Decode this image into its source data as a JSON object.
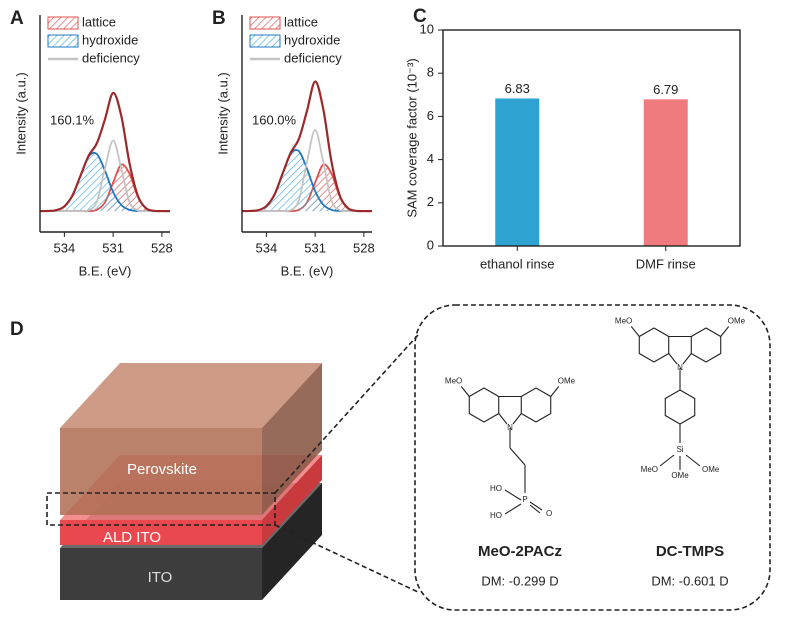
{
  "chart_data": [
    {
      "type": "line",
      "label": "A",
      "annotation": "160.1%",
      "x_label": "B.E. (eV)",
      "y_label": "Intensity (a.u.)",
      "x": [
        535.5,
        535,
        534.5,
        534,
        533.5,
        533,
        532.5,
        532,
        531.5,
        531,
        530.5,
        530,
        529.5,
        529,
        528.5,
        528,
        527.5
      ],
      "xlim": [
        535.5,
        527.5
      ],
      "xticks": [
        534,
        531,
        528
      ],
      "ylim": [
        -16,
        150
      ],
      "legend": "upper left",
      "series": [
        {
          "name": "lattice",
          "color": "#e0504c",
          "hatch": true,
          "values": [
            0,
            0,
            0,
            0,
            0,
            0,
            0,
            1,
            6.7,
            21.8,
            35.5,
            28.8,
            11.7,
            2.4,
            0.2,
            0,
            0
          ]
        },
        {
          "name": "hydroxide",
          "color": "#1f78c0",
          "hatch": true,
          "values": [
            0,
            0.1,
            0.7,
            3.6,
            12,
            27.3,
            41.9,
            43.6,
            30.8,
            14.6,
            4.7,
            1,
            0.1,
            0,
            0,
            0,
            0
          ]
        },
        {
          "name": "deficiency",
          "color": "#c4c4c4",
          "values": [
            0,
            0,
            0,
            0,
            0,
            0,
            0.6,
            7.3,
            32.8,
            54,
            32.8,
            7.3,
            0.6,
            0,
            0,
            0,
            0
          ]
        },
        {
          "color": "#9b2a2a",
          "values": [
            0,
            0.1,
            0.7,
            3.6,
            12,
            27.3,
            42.5,
            51.9,
            70.3,
            90.4,
            73,
            37.1,
            12.4,
            2.4,
            0.2,
            0,
            0
          ]
        }
      ]
    },
    {
      "type": "line",
      "label": "B",
      "annotation": "160.0%",
      "x_label": "B.E. (eV)",
      "y_label": "Intensity (a.u.)",
      "x": [
        535.5,
        535,
        534.5,
        534,
        533.5,
        533,
        532.5,
        532,
        531.5,
        531,
        530.5,
        530,
        529.5,
        529,
        528.5,
        528,
        527.5
      ],
      "xlim": [
        535.5,
        527.5
      ],
      "xticks": [
        534,
        531,
        528
      ],
      "ylim": [
        -16,
        150
      ],
      "legend": "upper left",
      "series": [
        {
          "name": "lattice",
          "color": "#e0504c",
          "hatch": true,
          "values": [
            0,
            0,
            0,
            0,
            0,
            0,
            0,
            1,
            6.7,
            21.8,
            35.5,
            28.8,
            11.7,
            2.4,
            0.2,
            0,
            0
          ]
        },
        {
          "name": "hydroxide",
          "color": "#1f78c0",
          "hatch": true,
          "values": [
            0,
            0.1,
            0.7,
            3.8,
            12.6,
            28.7,
            44,
            45.8,
            32.3,
            15.3,
            4.9,
            1,
            0.1,
            0,
            0,
            0,
            0
          ]
        },
        {
          "name": "deficiency",
          "color": "#c4c4c4",
          "values": [
            0,
            0,
            0,
            0,
            0,
            0,
            0.7,
            8.4,
            37.7,
            62,
            37.7,
            8.4,
            0.7,
            0,
            0,
            0,
            0
          ]
        },
        {
          "color": "#9b2a2a",
          "values": [
            0,
            0.1,
            0.7,
            3.8,
            12.6,
            28.7,
            44.7,
            55.2,
            76.7,
            99.1,
            78.1,
            38.2,
            12.5,
            2.4,
            0.2,
            0,
            0
          ]
        }
      ]
    },
    {
      "type": "bar",
      "label": "C",
      "y_label": "SAM coverage factor (10⁻³)",
      "categories": [
        "ethanol rinse",
        "DMF rinse"
      ],
      "values": [
        6.83,
        6.79
      ],
      "colors": [
        "#2ea3d1",
        "#f07b7f"
      ],
      "ylim": [
        0,
        10
      ],
      "yticks": [
        0,
        2,
        4,
        6,
        8,
        10
      ]
    }
  ],
  "diagram": {
    "label": "D",
    "layers": [
      "Perovskite",
      "ALD ITO",
      "ITO"
    ],
    "molecules": [
      {
        "name": "MeO-2PACz",
        "dipole": "DM: -0.299 D",
        "atoms": [
          "MeO",
          "OMe",
          "N",
          "HO",
          "HO",
          "P",
          "O"
        ]
      },
      {
        "name": "DC-TMPS",
        "dipole": "DM: -0.601 D",
        "atoms": [
          "MeO",
          "OMe",
          "N",
          "Si",
          "MeO",
          "OMe",
          "OMe"
        ]
      }
    ]
  }
}
